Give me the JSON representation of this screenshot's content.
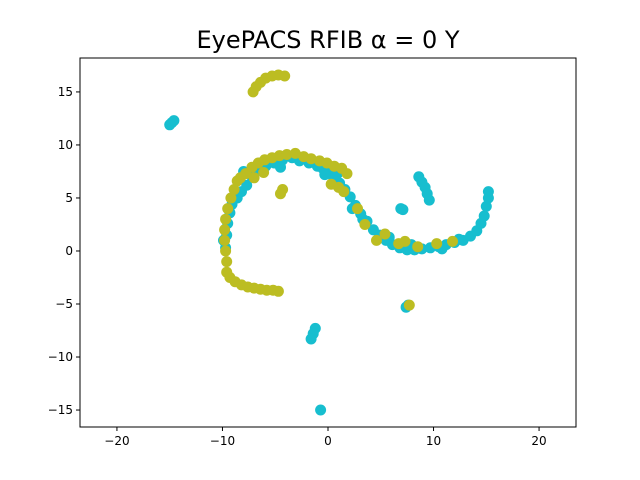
{
  "chart_data": {
    "type": "scatter",
    "title": "EyePACS RFIB α = 0 Y",
    "xlabel": "",
    "ylabel": "",
    "xlim": [
      -23.5,
      23.5
    ],
    "ylim": [
      -16.6,
      18.2
    ],
    "grid": false,
    "x_ticks": [
      -20,
      -10,
      0,
      10,
      20
    ],
    "y_ticks": [
      -15,
      -10,
      -5,
      0,
      5,
      10,
      15
    ],
    "x_tick_labels": [
      "−20",
      "−10",
      "0",
      "10",
      "20"
    ],
    "y_tick_labels": [
      "−15",
      "−10",
      "−5",
      "0",
      "5",
      "10",
      "15"
    ],
    "series": [
      {
        "color": "#17becf",
        "points": [
          [
            -15.0,
            11.9
          ],
          [
            -14.8,
            12.1
          ],
          [
            -14.6,
            12.3
          ],
          [
            -9.6,
            1.5
          ],
          [
            -9.9,
            1.0
          ],
          [
            -9.7,
            0.3
          ],
          [
            -9.5,
            2.6
          ],
          [
            -9.3,
            3.6
          ],
          [
            -9.1,
            4.4
          ],
          [
            -8.6,
            5.0
          ],
          [
            -8.2,
            5.6
          ],
          [
            -7.7,
            6.2
          ],
          [
            -7.2,
            7.0
          ],
          [
            -6.6,
            7.6
          ],
          [
            -5.9,
            8.0
          ],
          [
            -5.1,
            8.3
          ],
          [
            -4.3,
            8.6
          ],
          [
            -3.4,
            8.8
          ],
          [
            -2.7,
            8.5
          ],
          [
            -1.8,
            8.3
          ],
          [
            -1.0,
            8.0
          ],
          [
            -0.5,
            7.8
          ],
          [
            0.0,
            7.5
          ],
          [
            0.5,
            7.0
          ],
          [
            1.1,
            6.4
          ],
          [
            1.6,
            5.8
          ],
          [
            2.1,
            5.1
          ],
          [
            2.6,
            4.3
          ],
          [
            3.1,
            3.5
          ],
          [
            3.7,
            2.8
          ],
          [
            4.3,
            2.0
          ],
          [
            4.9,
            1.5
          ],
          [
            5.5,
            1.0
          ],
          [
            6.1,
            0.6
          ],
          [
            6.8,
            0.3
          ],
          [
            7.5,
            0.1
          ],
          [
            8.2,
            0.1
          ],
          [
            8.9,
            0.2
          ],
          [
            9.7,
            0.3
          ],
          [
            10.5,
            0.4
          ],
          [
            11.2,
            0.6
          ],
          [
            12.0,
            0.8
          ],
          [
            12.8,
            1.0
          ],
          [
            13.5,
            1.4
          ],
          [
            14.1,
            1.9
          ],
          [
            14.5,
            2.6
          ],
          [
            14.8,
            3.3
          ],
          [
            15.0,
            4.2
          ],
          [
            15.2,
            5.0
          ],
          [
            15.2,
            5.6
          ],
          [
            -8.0,
            7.5
          ],
          [
            -6.5,
            8.3
          ],
          [
            -4.5,
            7.9
          ],
          [
            -0.3,
            7.2
          ],
          [
            0.9,
            7.3
          ],
          [
            2.3,
            4.0
          ],
          [
            3.3,
            3.0
          ],
          [
            5.8,
            1.3
          ],
          [
            7.9,
            0.6
          ],
          [
            10.8,
            0.2
          ],
          [
            12.4,
            1.1
          ],
          [
            8.6,
            7.0
          ],
          [
            8.9,
            6.5
          ],
          [
            9.2,
            6.0
          ],
          [
            9.4,
            5.4
          ],
          [
            9.6,
            4.8
          ],
          [
            6.9,
            4.0
          ],
          [
            7.1,
            3.9
          ],
          [
            7.4,
            -5.3
          ],
          [
            7.6,
            -5.1
          ],
          [
            -1.2,
            -7.3
          ],
          [
            -1.4,
            -7.8
          ],
          [
            -1.6,
            -8.3
          ],
          [
            -0.7,
            -15.0
          ]
        ]
      },
      {
        "color": "#bcbd22",
        "points": [
          [
            -7.1,
            15.0
          ],
          [
            -6.8,
            15.5
          ],
          [
            -6.4,
            15.9
          ],
          [
            -5.9,
            16.3
          ],
          [
            -5.3,
            16.5
          ],
          [
            -4.7,
            16.6
          ],
          [
            -4.1,
            16.5
          ],
          [
            -8.6,
            6.6
          ],
          [
            -8.3,
            6.9
          ],
          [
            -7.8,
            7.3
          ],
          [
            -7.2,
            7.9
          ],
          [
            -6.6,
            8.3
          ],
          [
            -6.0,
            8.6
          ],
          [
            -5.3,
            8.8
          ],
          [
            -4.6,
            9.0
          ],
          [
            -3.9,
            9.1
          ],
          [
            -3.1,
            9.2
          ],
          [
            -2.3,
            8.9
          ],
          [
            -1.6,
            8.7
          ],
          [
            -0.8,
            8.5
          ],
          [
            -0.1,
            8.3
          ],
          [
            0.6,
            8.0
          ],
          [
            1.3,
            7.8
          ],
          [
            1.8,
            7.3
          ],
          [
            -4.3,
            5.8
          ],
          [
            -4.5,
            5.4
          ],
          [
            -9.5,
            4.0
          ],
          [
            -9.7,
            3.0
          ],
          [
            -9.8,
            2.0
          ],
          [
            -9.8,
            1.0
          ],
          [
            -9.7,
            0.0
          ],
          [
            -9.6,
            -1.0
          ],
          [
            -9.6,
            -2.0
          ],
          [
            -9.3,
            -2.5
          ],
          [
            -8.8,
            -2.9
          ],
          [
            -8.2,
            -3.2
          ],
          [
            -7.6,
            -3.4
          ],
          [
            -7.0,
            -3.5
          ],
          [
            -6.4,
            -3.6
          ],
          [
            -5.8,
            -3.7
          ],
          [
            -5.2,
            -3.7
          ],
          [
            -4.7,
            -3.8
          ],
          [
            -8.9,
            5.8
          ],
          [
            -9.2,
            5.0
          ],
          [
            -7.0,
            6.9
          ],
          [
            -6.1,
            7.4
          ],
          [
            0.3,
            6.3
          ],
          [
            1.0,
            6.0
          ],
          [
            1.5,
            5.6
          ],
          [
            2.8,
            4.0
          ],
          [
            3.5,
            2.5
          ],
          [
            4.6,
            1.0
          ],
          [
            5.4,
            1.6
          ],
          [
            6.7,
            0.7
          ],
          [
            7.3,
            0.9
          ],
          [
            8.5,
            0.4
          ],
          [
            10.3,
            0.7
          ],
          [
            11.8,
            0.9
          ],
          [
            7.7,
            -5.1
          ]
        ]
      }
    ]
  }
}
